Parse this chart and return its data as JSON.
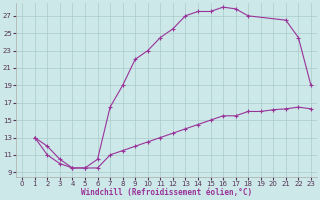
{
  "xlabel": "Windchill (Refroidissement éolien,°C)",
  "background_color": "#cce8e8",
  "line_color": "#993399",
  "grid_color": "#aacccc",
  "xlim": [
    -0.5,
    23.5
  ],
  "ylim": [
    8.5,
    28.5
  ],
  "xticks": [
    0,
    1,
    2,
    3,
    4,
    5,
    6,
    7,
    8,
    9,
    10,
    11,
    12,
    13,
    14,
    15,
    16,
    17,
    18,
    19,
    20,
    21,
    22,
    23
  ],
  "yticks": [
    9,
    11,
    13,
    15,
    17,
    19,
    21,
    23,
    25,
    27
  ],
  "curve1_x": [
    1,
    2,
    3,
    4,
    5,
    6,
    7,
    8,
    9,
    10,
    11,
    12,
    13,
    14,
    15,
    16,
    17,
    18,
    21,
    22,
    23
  ],
  "curve1_y": [
    13,
    11,
    10,
    9.5,
    9.5,
    10.5,
    16.5,
    19,
    22,
    23,
    24.5,
    25.5,
    27,
    27.5,
    27.5,
    28,
    27.8,
    27,
    26.5,
    24.5,
    19
  ],
  "curve2_x": [
    1,
    2,
    3,
    4,
    5,
    6,
    7,
    8,
    9,
    10,
    11,
    12,
    13,
    14,
    15,
    16,
    17,
    18,
    19,
    20,
    21,
    22,
    23
  ],
  "curve2_y": [
    13,
    12,
    10.5,
    9.5,
    9.5,
    9.5,
    11,
    11.5,
    12,
    12.5,
    13,
    13.5,
    14,
    14.5,
    15,
    15.5,
    15.5,
    16,
    16,
    16.2,
    16.3,
    16.5,
    16.3
  ],
  "xtick_fontsize": 5,
  "ytick_fontsize": 5,
  "xlabel_fontsize": 5.5
}
